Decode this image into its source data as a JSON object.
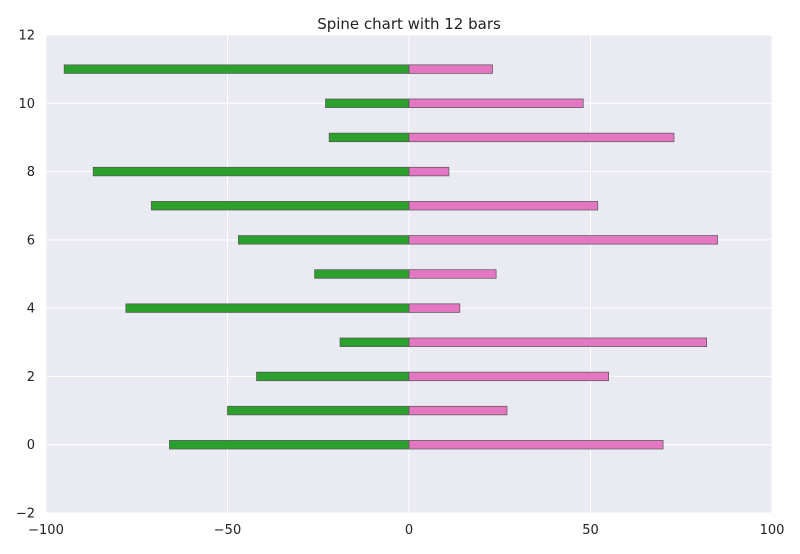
{
  "chart_data": {
    "type": "bar",
    "orientation": "horizontal",
    "title": "Spine chart with 12 bars",
    "xlabel": "",
    "ylabel": "",
    "xlim": [
      -100,
      100
    ],
    "ylim": [
      -2,
      12
    ],
    "x_ticks": [
      "−100",
      "−50",
      "0",
      "50",
      "100"
    ],
    "x_tick_values": [
      -100,
      -50,
      0,
      50,
      100
    ],
    "y_ticks": [
      "−2",
      "0",
      "2",
      "4",
      "6",
      "8",
      "10",
      "12"
    ],
    "y_tick_values": [
      -2,
      0,
      2,
      4,
      6,
      8,
      10,
      12
    ],
    "grid": true,
    "legend": "none",
    "categories": [
      0,
      1,
      2,
      3,
      4,
      5,
      6,
      7,
      8,
      9,
      10,
      11
    ],
    "series": [
      {
        "color": "#2ca02c",
        "values": [
          -66,
          -50,
          -42,
          -19,
          -78,
          -26,
          -47,
          -71,
          -87,
          -22,
          -23,
          -95
        ]
      },
      {
        "color": "#e377c2",
        "values": [
          70,
          27,
          55,
          82,
          14,
          24,
          85,
          52,
          11,
          73,
          48,
          23
        ]
      }
    ],
    "colors": {
      "plot_background": "#eaeaf2",
      "grid": "#ffffff",
      "bar_edge": "#555555"
    }
  }
}
